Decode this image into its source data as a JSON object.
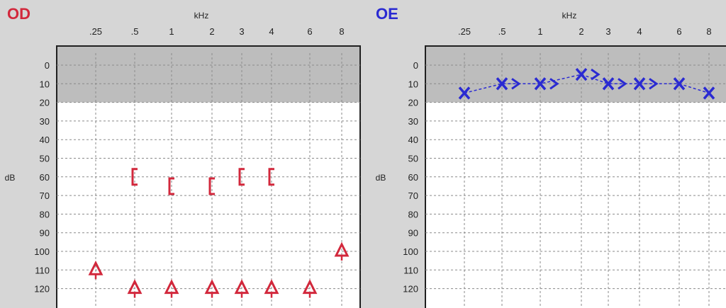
{
  "colors": {
    "background": "#d6d6d6",
    "od": "#d2283c",
    "oe": "#2a2ad2",
    "shade": "#bdbdbd",
    "grid": "#8a8a8a",
    "frame": "#202020"
  },
  "chart_data": [
    {
      "type": "scatter",
      "title": "OD",
      "xlabel": "kHz",
      "ylabel": "dB",
      "x_tick_labels": [
        ".25",
        ".5",
        "1",
        "2",
        "3",
        "4",
        "6",
        "8"
      ],
      "y_tick_labels": [
        "0",
        "10",
        "20",
        "30",
        "40",
        "50",
        "60",
        "70",
        "80",
        "90",
        "100",
        "110",
        "120"
      ],
      "ylim": [
        -10,
        120
      ],
      "y_inverted": true,
      "shaded_band": [
        -10,
        20
      ],
      "grid": true,
      "series": [
        {
          "marker": "[",
          "connected": false,
          "points": [
            {
              "x": ".5",
              "y": 60
            },
            {
              "x": "1",
              "y": 65
            },
            {
              "x": "2",
              "y": 65
            },
            {
              "x": "3",
              "y": 60
            },
            {
              "x": "4",
              "y": 60
            }
          ]
        },
        {
          "marker": "triangle",
          "connected": false,
          "points": [
            {
              "x": ".25",
              "y": 110
            },
            {
              "x": ".5",
              "y": 120
            },
            {
              "x": "1",
              "y": 120
            },
            {
              "x": "2",
              "y": 120
            },
            {
              "x": "3",
              "y": 120
            },
            {
              "x": "4",
              "y": 120
            },
            {
              "x": "6",
              "y": 120
            },
            {
              "x": "8",
              "y": 100
            }
          ]
        }
      ]
    },
    {
      "type": "line",
      "title": "OE",
      "xlabel": "kHz",
      "ylabel": "dB",
      "x_tick_labels": [
        ".25",
        ".5",
        "1",
        "2",
        "3",
        "4",
        "6",
        "8"
      ],
      "y_tick_labels": [
        "0",
        "10",
        "20",
        "30",
        "40",
        "50",
        "60",
        "70",
        "80",
        "90",
        "100",
        "110",
        "120"
      ],
      "ylim": [
        -10,
        120
      ],
      "y_inverted": true,
      "shaded_band": [
        -10,
        20
      ],
      "grid": true,
      "series": [
        {
          "marker": "X",
          "connected": true,
          "points": [
            {
              "x": ".25",
              "y": 15
            },
            {
              "x": ".5",
              "y": 10
            },
            {
              "x": "1",
              "y": 10
            },
            {
              "x": "2",
              "y": 5
            },
            {
              "x": "3",
              "y": 10
            },
            {
              "x": "4",
              "y": 10
            },
            {
              "x": "6",
              "y": 10
            },
            {
              "x": "8",
              "y": 15
            }
          ]
        },
        {
          "marker": ">",
          "connected": false,
          "points": [
            {
              "x": ".5",
              "y": 10
            },
            {
              "x": "1",
              "y": 10
            },
            {
              "x": "2",
              "y": 5
            },
            {
              "x": "3",
              "y": 10
            },
            {
              "x": "4",
              "y": 10
            }
          ]
        }
      ]
    }
  ]
}
